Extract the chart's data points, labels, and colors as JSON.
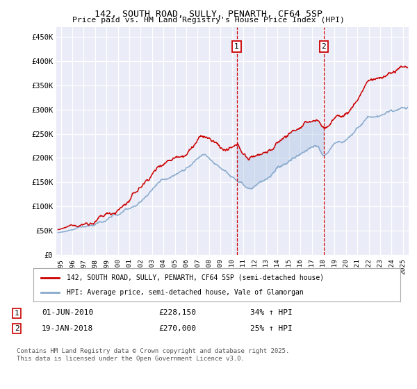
{
  "title_line1": "142, SOUTH ROAD, SULLY, PENARTH, CF64 5SP",
  "title_line2": "Price paid vs. HM Land Registry's House Price Index (HPI)",
  "xlim_start": 1994.6,
  "xlim_end": 2025.5,
  "ylim": [
    0,
    470000
  ],
  "yticks": [
    0,
    50000,
    100000,
    150000,
    200000,
    250000,
    300000,
    350000,
    400000,
    450000
  ],
  "ytick_labels": [
    "£0",
    "£50K",
    "£100K",
    "£150K",
    "£200K",
    "£250K",
    "£300K",
    "£350K",
    "£400K",
    "£450K"
  ],
  "background_color": "#ffffff",
  "plot_bg_color": "#eaecf8",
  "grid_color": "#ffffff",
  "red_line_color": "#cc0000",
  "blue_line_color": "#88aacc",
  "shade_color": "#b8cce8",
  "vline_color": "#cc0000",
  "marker1_x": 2010.42,
  "marker1_y": 228150,
  "marker2_x": 2018.05,
  "marker2_y": 270000,
  "legend1_text": "142, SOUTH ROAD, SULLY, PENARTH, CF64 5SP (semi-detached house)",
  "legend2_text": "HPI: Average price, semi-detached house, Vale of Glamorgan",
  "footnote": "Contains HM Land Registry data © Crown copyright and database right 2025.\nThis data is licensed under the Open Government Licence v3.0.",
  "xticks": [
    1995,
    1996,
    1997,
    1998,
    1999,
    2000,
    2001,
    2002,
    2003,
    2004,
    2005,
    2006,
    2007,
    2008,
    2009,
    2010,
    2011,
    2012,
    2013,
    2014,
    2015,
    2016,
    2017,
    2018,
    2019,
    2020,
    2021,
    2022,
    2023,
    2024,
    2025
  ]
}
